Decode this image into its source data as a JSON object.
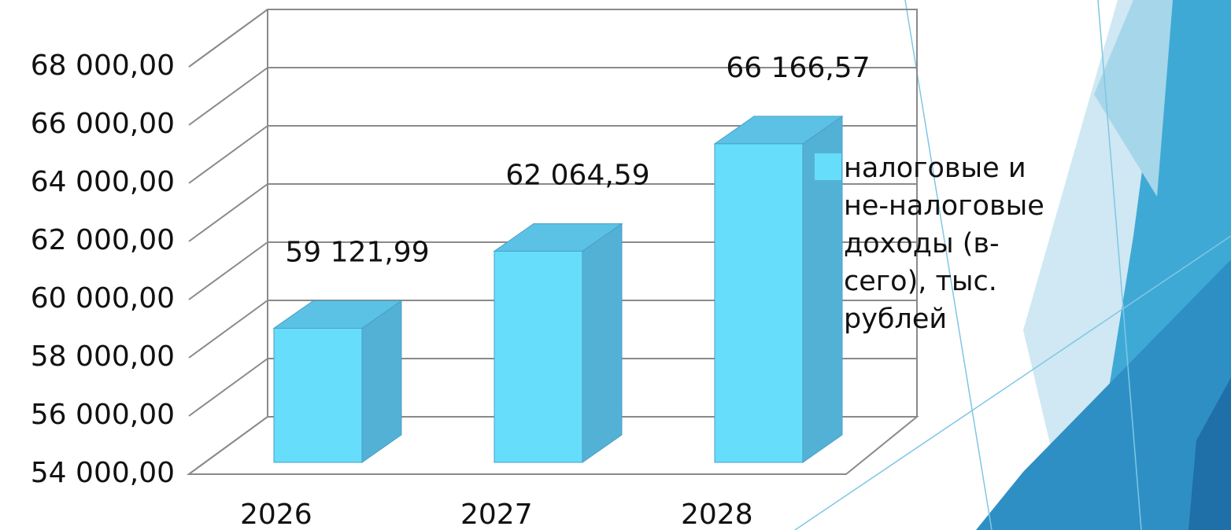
{
  "chart_data": {
    "type": "bar3d",
    "categories": [
      "2026",
      "2027",
      "2028"
    ],
    "series": [
      {
        "name": "налоговые и не-налоговые доходы (в-сего), тыс. рублей",
        "color": "#66ddfb",
        "values": [
          59121.99,
          62064.59,
          66166.57
        ],
        "value_labels": [
          "59 121,99",
          "62 064,59",
          "66 166,57"
        ]
      }
    ],
    "ylim": [
      54000,
      68000
    ],
    "yticks": [
      {
        "value": 54000,
        "label": "54 000,00"
      },
      {
        "value": 56000,
        "label": "56 000,00"
      },
      {
        "value": 58000,
        "label": "58 000,00"
      },
      {
        "value": 60000,
        "label": "60 000,00"
      },
      {
        "value": 62000,
        "label": "62 000,00"
      },
      {
        "value": 64000,
        "label": "64 000,00"
      },
      {
        "value": 66000,
        "label": "66 000,00"
      },
      {
        "value": 68000,
        "label": "68 000,00"
      }
    ],
    "grid": true,
    "legend": "right"
  }
}
